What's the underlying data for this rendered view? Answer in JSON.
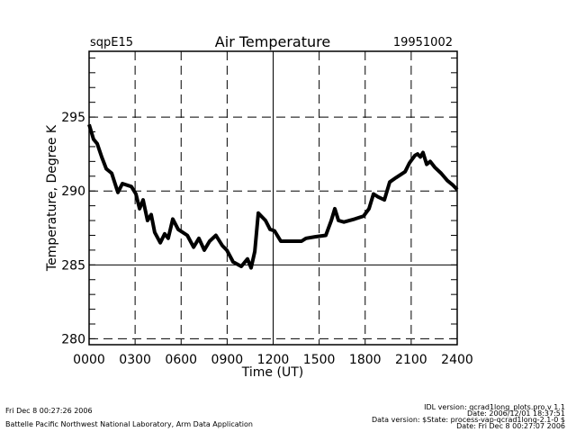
{
  "header": {
    "site": "sqpE15",
    "date": "19951002"
  },
  "footer": {
    "left_line1": "Fri Dec  8 00:27:26 2006",
    "left_line2": "Battelle Pacific Northwest National Laboratory, Arm Data Application",
    "right_line1": "IDL version: qcrad1long_plots.pro,v 1.1",
    "right_line2": "Date: 2006/12/01 18:37:51",
    "right_line3": "Data version: $State: process-vap-qcrad1long-2.1-0 $",
    "right_line4": "Date: Fri Dec  8 00:27:07 2006"
  },
  "colors": {
    "line": "#000000",
    "grid": "#000000",
    "background": "#ffffff"
  },
  "chart_data": {
    "type": "line",
    "title": "Air Temperature",
    "xlabel": "Time (UT)",
    "ylabel": "Temperature, Degree K",
    "xlim": [
      0,
      24
    ],
    "ylim": [
      279.6,
      299.45
    ],
    "grid": true,
    "x_ticks": [
      0,
      3,
      6,
      9,
      12,
      15,
      18,
      21,
      24
    ],
    "x_tick_labels": [
      "0000",
      "0300",
      "0600",
      "0900",
      "1200",
      "1500",
      "1800",
      "2100",
      "2400"
    ],
    "y_ticks": [
      280,
      285,
      290,
      295
    ],
    "y_tick_labels": [
      "280",
      "285",
      "290",
      "295"
    ],
    "series": [
      {
        "name": "Air Temperature",
        "x": [
          0,
          0.29,
          0.53,
          0.82,
          1.12,
          1.47,
          1.88,
          2.17,
          2.76,
          3.05,
          3.29,
          3.52,
          3.81,
          4.05,
          4.28,
          4.64,
          4.93,
          5.16,
          5.46,
          5.81,
          6.4,
          6.81,
          7.16,
          7.51,
          7.86,
          8.27,
          8.69,
          8.98,
          9.39,
          9.92,
          10.33,
          10.56,
          10.8,
          11.03,
          11.5,
          11.8,
          12.09,
          12.5,
          12.97,
          13.85,
          14.14,
          14.73,
          15.43,
          15.79,
          16.02,
          16.26,
          16.61,
          17.31,
          17.9,
          18.25,
          18.54,
          18.84,
          19.25,
          19.6,
          20.01,
          20.6,
          20.89,
          21.24,
          21.42,
          21.6,
          21.77,
          22.01,
          22.24,
          22.54,
          22.95,
          23.36,
          23.71,
          24
        ],
        "y": [
          294.5,
          293.5,
          293.2,
          292.3,
          291.5,
          291.2,
          289.9,
          290.5,
          290.3,
          289.8,
          288.8,
          289.4,
          288.0,
          288.4,
          287.2,
          286.5,
          287.1,
          286.8,
          288.1,
          287.4,
          287.0,
          286.2,
          286.8,
          286.0,
          286.6,
          287.0,
          286.3,
          286.0,
          285.2,
          284.9,
          285.4,
          284.8,
          285.9,
          288.5,
          288.0,
          287.4,
          287.3,
          286.6,
          286.6,
          286.6,
          286.8,
          286.9,
          287.0,
          288.0,
          288.8,
          288.0,
          287.9,
          288.1,
          288.3,
          288.8,
          289.8,
          289.6,
          289.4,
          290.6,
          290.9,
          291.3,
          291.9,
          292.4,
          292.5,
          292.3,
          292.6,
          291.8,
          292.0,
          291.6,
          291.2,
          290.7,
          290.4,
          290.1
        ]
      }
    ]
  }
}
